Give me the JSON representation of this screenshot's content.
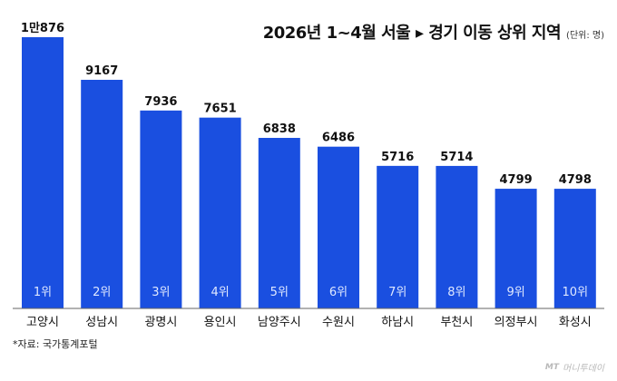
{
  "chart_data": {
    "type": "bar",
    "title": "2026년 1~4월 서울 ▸ 경기 이동 상위 지역",
    "unit_label": "(단위: 명)",
    "categories": [
      "고양시",
      "성남시",
      "광명시",
      "용인시",
      "남양주시",
      "수원시",
      "하남시",
      "부천시",
      "의정부시",
      "화성시"
    ],
    "ranks": [
      "1위",
      "2위",
      "3위",
      "4위",
      "5위",
      "6위",
      "7위",
      "8위",
      "9위",
      "10위"
    ],
    "value_labels": [
      "1만876",
      "9167",
      "7936",
      "7651",
      "6838",
      "6486",
      "5716",
      "5714",
      "4799",
      "4798"
    ],
    "values": [
      10876,
      9167,
      7936,
      7651,
      6838,
      6486,
      5716,
      5714,
      4799,
      4798
    ],
    "ylim": [
      0,
      10876
    ],
    "grid": false,
    "legend": "none",
    "colors": {
      "bar": "#1a4fe0",
      "rank_text": "#dfe8ff",
      "label_text": "#111111"
    }
  },
  "source": "*자료: 국가통계포털",
  "watermark": {
    "mark": "MT",
    "text": "머니투데이"
  }
}
